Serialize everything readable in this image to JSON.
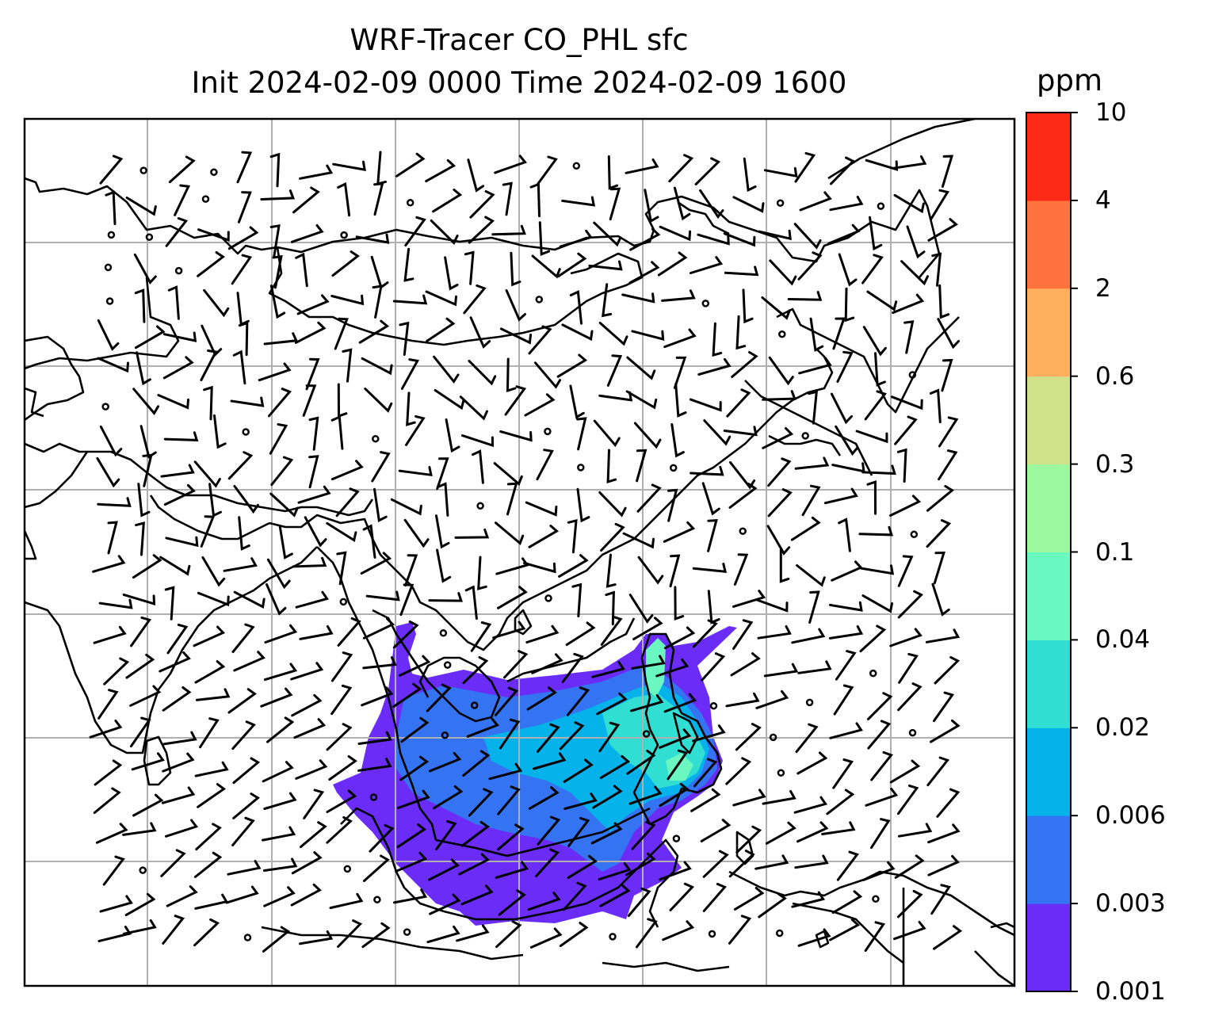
{
  "title": {
    "line1": "WRF-Tracer CO_PHL sfc",
    "line2": "Init 2024-02-09 0000 Time 2024-02-09 1600"
  },
  "colorbar": {
    "unit": "ppm",
    "ticks": [
      "0.001",
      "0.003",
      "0.006",
      "0.02",
      "0.04",
      "0.1",
      "0.3",
      "0.6",
      "2",
      "4",
      "10"
    ],
    "colors": [
      "#6a2cf6",
      "#3473f2",
      "#06b2ea",
      "#30dfd2",
      "#6af8c0",
      "#9bf89c",
      "#d0e18c",
      "#feb05f",
      "#fe7340",
      "#fe2a17"
    ]
  },
  "map": {
    "region": "Asia",
    "gridlines": true,
    "field": "CO_PHL tracer surface concentration",
    "overlay": "wind barbs"
  }
}
